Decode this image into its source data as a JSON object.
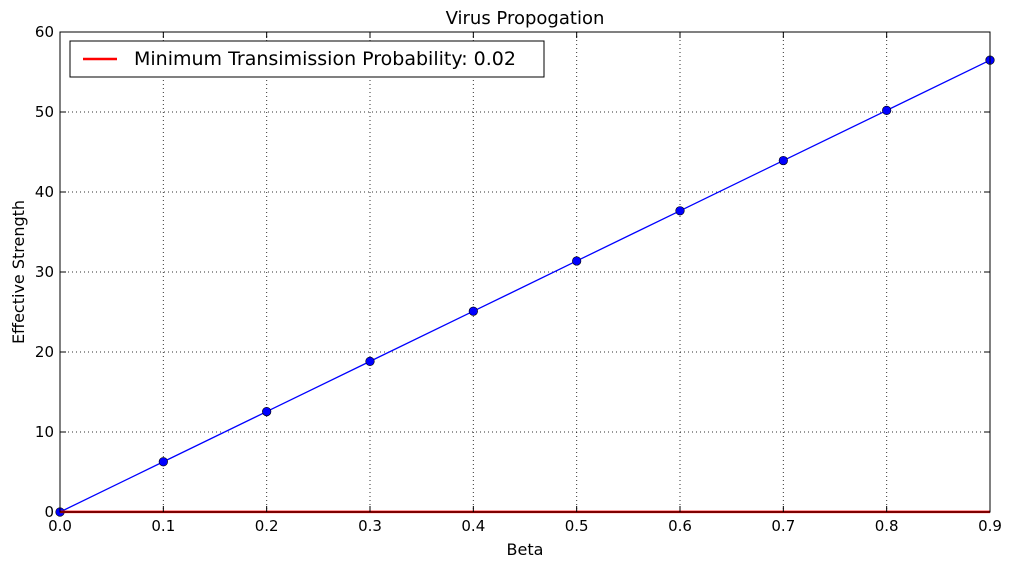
{
  "chart_data": {
    "type": "line",
    "title": "Virus Propogation",
    "xlabel": "Beta",
    "ylabel": "Effective Strength",
    "xlim": [
      0.0,
      0.9
    ],
    "ylim": [
      0,
      60
    ],
    "xticks": [
      "0.0",
      "0.1",
      "0.2",
      "0.3",
      "0.4",
      "0.5",
      "0.6",
      "0.7",
      "0.8",
      "0.9"
    ],
    "yticks": [
      "0",
      "10",
      "20",
      "30",
      "40",
      "50",
      "60"
    ],
    "grid": true,
    "legend_position": "top-left",
    "series": [
      {
        "name": "",
        "color": "#0000ff",
        "marker": "circle",
        "x": [
          0.0,
          0.1,
          0.2,
          0.3,
          0.4,
          0.5,
          0.6,
          0.7,
          0.8,
          0.9
        ],
        "y": [
          0.0,
          6.28,
          12.55,
          18.83,
          25.1,
          31.38,
          37.65,
          43.93,
          50.2,
          56.48
        ]
      },
      {
        "name": "Minimum Transimission Probability: 0.02",
        "color": "#ff0000",
        "marker": "none",
        "x": [
          0.0,
          0.9
        ],
        "y": [
          0.02,
          0.02
        ]
      }
    ]
  }
}
